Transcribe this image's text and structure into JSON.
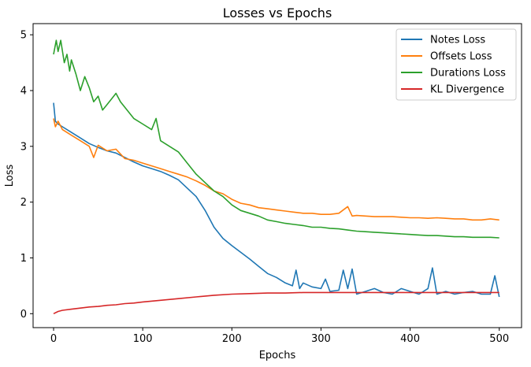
{
  "chart_data": {
    "type": "line",
    "title": "Losses vs Epochs",
    "xlabel": "Epochs",
    "ylabel": "Loss",
    "xlim": [
      -23,
      525
    ],
    "ylim": [
      -0.25,
      5.2
    ],
    "xticks": [
      0,
      100,
      200,
      300,
      400,
      500
    ],
    "yticks": [
      0,
      1,
      2,
      3,
      4,
      5
    ],
    "legend_position": "top-right",
    "grid": false,
    "series": [
      {
        "name": "Notes Loss",
        "color": "#1f77b4",
        "points": [
          [
            0,
            3.78
          ],
          [
            2,
            3.45
          ],
          [
            5,
            3.4
          ],
          [
            10,
            3.35
          ],
          [
            20,
            3.25
          ],
          [
            30,
            3.15
          ],
          [
            40,
            3.05
          ],
          [
            50,
            2.98
          ],
          [
            60,
            2.92
          ],
          [
            70,
            2.88
          ],
          [
            80,
            2.8
          ],
          [
            90,
            2.72
          ],
          [
            100,
            2.65
          ],
          [
            110,
            2.6
          ],
          [
            120,
            2.55
          ],
          [
            130,
            2.48
          ],
          [
            140,
            2.4
          ],
          [
            150,
            2.25
          ],
          [
            160,
            2.1
          ],
          [
            170,
            1.85
          ],
          [
            180,
            1.55
          ],
          [
            190,
            1.35
          ],
          [
            200,
            1.22
          ],
          [
            210,
            1.1
          ],
          [
            220,
            0.98
          ],
          [
            230,
            0.85
          ],
          [
            240,
            0.72
          ],
          [
            250,
            0.65
          ],
          [
            260,
            0.55
          ],
          [
            268,
            0.5
          ],
          [
            272,
            0.78
          ],
          [
            276,
            0.45
          ],
          [
            280,
            0.55
          ],
          [
            290,
            0.48
          ],
          [
            300,
            0.45
          ],
          [
            305,
            0.62
          ],
          [
            310,
            0.4
          ],
          [
            320,
            0.42
          ],
          [
            325,
            0.78
          ],
          [
            330,
            0.45
          ],
          [
            335,
            0.8
          ],
          [
            340,
            0.35
          ],
          [
            350,
            0.4
          ],
          [
            360,
            0.45
          ],
          [
            370,
            0.38
          ],
          [
            380,
            0.35
          ],
          [
            390,
            0.45
          ],
          [
            400,
            0.4
          ],
          [
            410,
            0.35
          ],
          [
            420,
            0.45
          ],
          [
            425,
            0.82
          ],
          [
            430,
            0.35
          ],
          [
            440,
            0.4
          ],
          [
            450,
            0.35
          ],
          [
            460,
            0.38
          ],
          [
            470,
            0.4
          ],
          [
            480,
            0.35
          ],
          [
            490,
            0.35
          ],
          [
            495,
            0.68
          ],
          [
            500,
            0.3
          ]
        ]
      },
      {
        "name": "Offsets Loss",
        "color": "#ff7f0e",
        "points": [
          [
            0,
            3.5
          ],
          [
            2,
            3.35
          ],
          [
            5,
            3.45
          ],
          [
            10,
            3.3
          ],
          [
            20,
            3.2
          ],
          [
            30,
            3.1
          ],
          [
            40,
            3.0
          ],
          [
            45,
            2.8
          ],
          [
            50,
            3.02
          ],
          [
            60,
            2.92
          ],
          [
            70,
            2.95
          ],
          [
            80,
            2.78
          ],
          [
            90,
            2.75
          ],
          [
            100,
            2.7
          ],
          [
            110,
            2.65
          ],
          [
            120,
            2.6
          ],
          [
            130,
            2.55
          ],
          [
            140,
            2.5
          ],
          [
            150,
            2.45
          ],
          [
            160,
            2.38
          ],
          [
            170,
            2.3
          ],
          [
            180,
            2.2
          ],
          [
            190,
            2.15
          ],
          [
            200,
            2.05
          ],
          [
            210,
            1.98
          ],
          [
            220,
            1.95
          ],
          [
            230,
            1.9
          ],
          [
            240,
            1.88
          ],
          [
            250,
            1.86
          ],
          [
            260,
            1.84
          ],
          [
            270,
            1.82
          ],
          [
            280,
            1.8
          ],
          [
            290,
            1.8
          ],
          [
            300,
            1.78
          ],
          [
            310,
            1.78
          ],
          [
            320,
            1.8
          ],
          [
            330,
            1.92
          ],
          [
            335,
            1.75
          ],
          [
            340,
            1.76
          ],
          [
            350,
            1.75
          ],
          [
            360,
            1.74
          ],
          [
            370,
            1.74
          ],
          [
            380,
            1.74
          ],
          [
            390,
            1.73
          ],
          [
            400,
            1.72
          ],
          [
            410,
            1.72
          ],
          [
            420,
            1.71
          ],
          [
            430,
            1.72
          ],
          [
            440,
            1.71
          ],
          [
            450,
            1.7
          ],
          [
            460,
            1.7
          ],
          [
            470,
            1.68
          ],
          [
            480,
            1.68
          ],
          [
            490,
            1.7
          ],
          [
            500,
            1.68
          ]
        ]
      },
      {
        "name": "Durations Loss",
        "color": "#2ca02c",
        "points": [
          [
            0,
            4.65
          ],
          [
            3,
            4.9
          ],
          [
            5,
            4.7
          ],
          [
            8,
            4.9
          ],
          [
            12,
            4.5
          ],
          [
            15,
            4.65
          ],
          [
            18,
            4.35
          ],
          [
            20,
            4.55
          ],
          [
            25,
            4.3
          ],
          [
            30,
            4.0
          ],
          [
            35,
            4.25
          ],
          [
            40,
            4.05
          ],
          [
            45,
            3.8
          ],
          [
            50,
            3.9
          ],
          [
            55,
            3.65
          ],
          [
            60,
            3.75
          ],
          [
            65,
            3.85
          ],
          [
            70,
            3.95
          ],
          [
            75,
            3.8
          ],
          [
            80,
            3.7
          ],
          [
            90,
            3.5
          ],
          [
            100,
            3.4
          ],
          [
            110,
            3.3
          ],
          [
            115,
            3.5
          ],
          [
            120,
            3.1
          ],
          [
            130,
            3.0
          ],
          [
            140,
            2.9
          ],
          [
            150,
            2.7
          ],
          [
            160,
            2.5
          ],
          [
            170,
            2.35
          ],
          [
            180,
            2.2
          ],
          [
            190,
            2.1
          ],
          [
            200,
            1.95
          ],
          [
            210,
            1.85
          ],
          [
            220,
            1.8
          ],
          [
            230,
            1.75
          ],
          [
            240,
            1.68
          ],
          [
            250,
            1.65
          ],
          [
            260,
            1.62
          ],
          [
            270,
            1.6
          ],
          [
            280,
            1.58
          ],
          [
            290,
            1.55
          ],
          [
            300,
            1.55
          ],
          [
            310,
            1.53
          ],
          [
            320,
            1.52
          ],
          [
            330,
            1.5
          ],
          [
            340,
            1.48
          ],
          [
            350,
            1.47
          ],
          [
            360,
            1.46
          ],
          [
            370,
            1.45
          ],
          [
            380,
            1.44
          ],
          [
            390,
            1.43
          ],
          [
            400,
            1.42
          ],
          [
            410,
            1.41
          ],
          [
            420,
            1.4
          ],
          [
            430,
            1.4
          ],
          [
            440,
            1.39
          ],
          [
            450,
            1.38
          ],
          [
            460,
            1.38
          ],
          [
            470,
            1.37
          ],
          [
            480,
            1.37
          ],
          [
            490,
            1.37
          ],
          [
            500,
            1.36
          ]
        ]
      },
      {
        "name": "KL Divergence",
        "color": "#d62728",
        "points": [
          [
            0,
            0.0
          ],
          [
            5,
            0.04
          ],
          [
            10,
            0.06
          ],
          [
            20,
            0.08
          ],
          [
            30,
            0.1
          ],
          [
            40,
            0.12
          ],
          [
            50,
            0.13
          ],
          [
            60,
            0.15
          ],
          [
            70,
            0.16
          ],
          [
            80,
            0.18
          ],
          [
            90,
            0.19
          ],
          [
            100,
            0.21
          ],
          [
            120,
            0.24
          ],
          [
            140,
            0.27
          ],
          [
            160,
            0.3
          ],
          [
            180,
            0.33
          ],
          [
            200,
            0.35
          ],
          [
            220,
            0.36
          ],
          [
            240,
            0.37
          ],
          [
            260,
            0.37
          ],
          [
            280,
            0.38
          ],
          [
            300,
            0.38
          ],
          [
            320,
            0.38
          ],
          [
            340,
            0.38
          ],
          [
            360,
            0.38
          ],
          [
            380,
            0.38
          ],
          [
            400,
            0.38
          ],
          [
            420,
            0.38
          ],
          [
            440,
            0.38
          ],
          [
            460,
            0.38
          ],
          [
            480,
            0.38
          ],
          [
            500,
            0.38
          ]
        ]
      }
    ]
  }
}
